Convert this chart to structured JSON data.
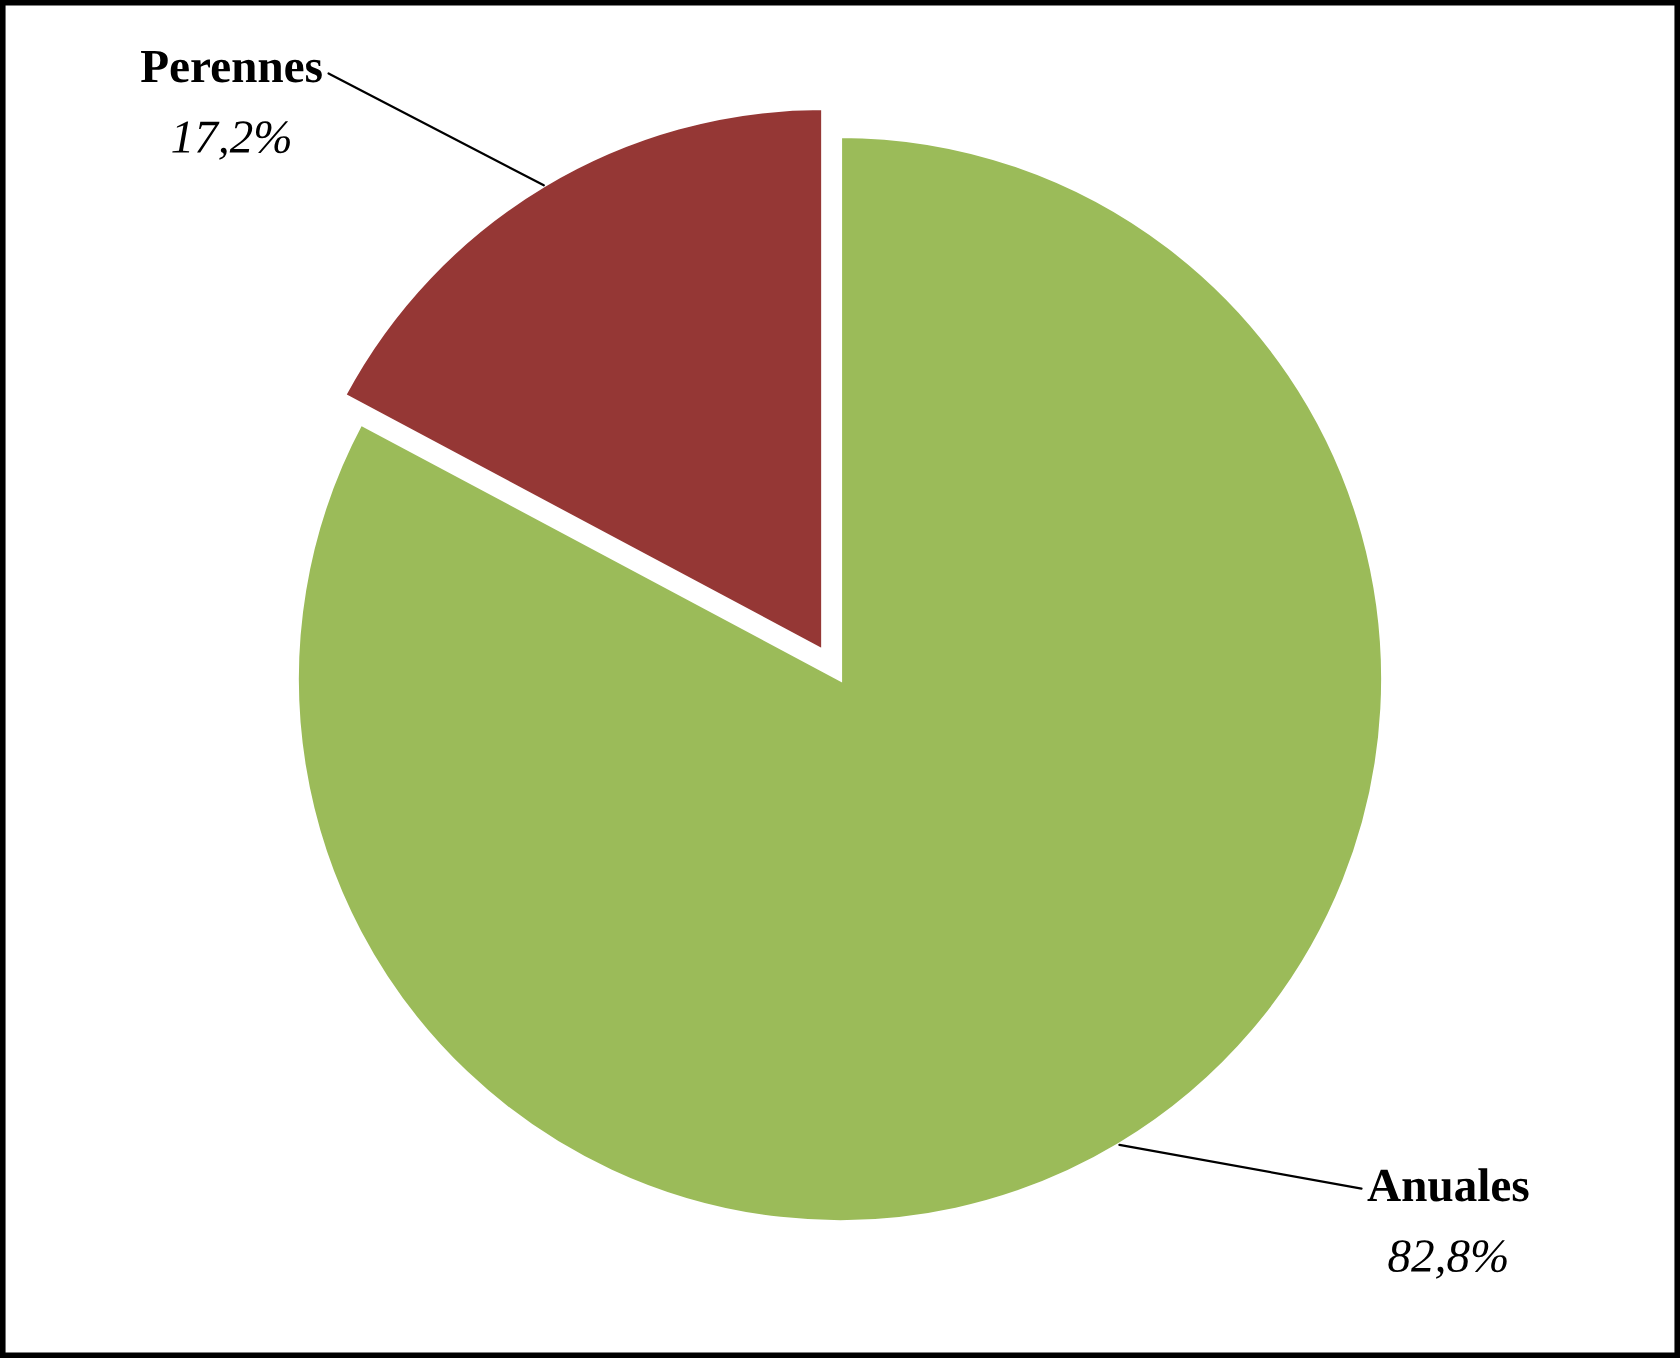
{
  "chart_data": {
    "type": "pie",
    "categories": [
      "Anuales",
      "Perennes"
    ],
    "values": [
      82.8,
      17.2
    ],
    "colors": [
      "#9bbb59",
      "#953735"
    ],
    "value_labels": [
      "82,8%",
      "17,2%"
    ]
  }
}
